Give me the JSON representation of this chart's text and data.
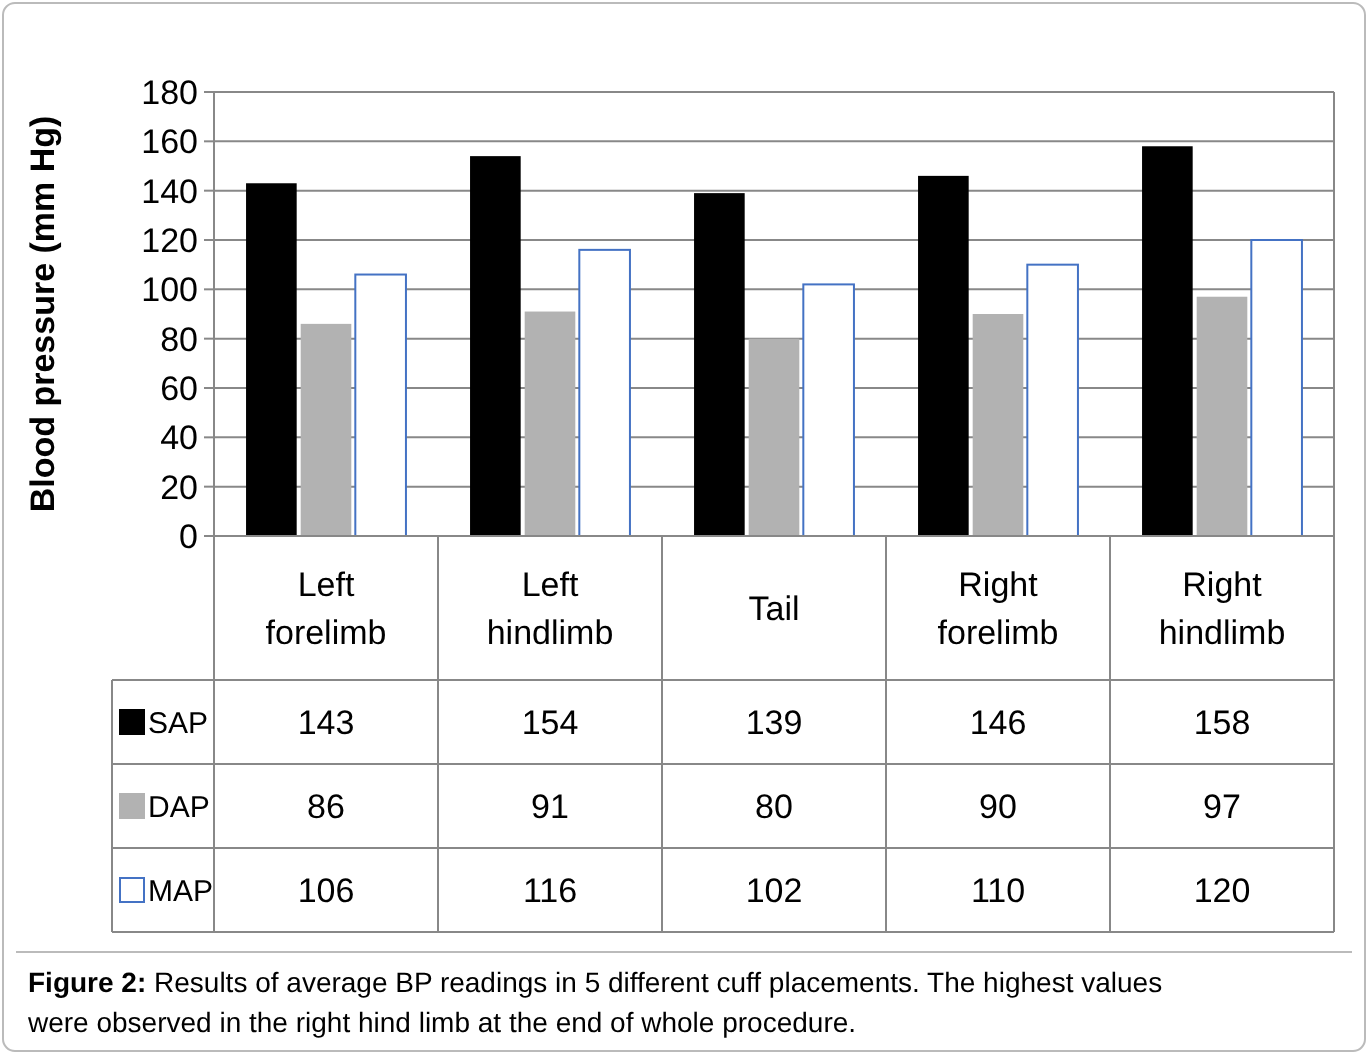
{
  "chart_data": {
    "type": "bar",
    "ylabel": "Blood pressure (mm Hg)",
    "categories": [
      "Left forelimb",
      "Left hindlimb",
      "Tail",
      "Right forelimb",
      "Right hindlimb"
    ],
    "series": [
      {
        "name": "SAP",
        "color": "#000000",
        "values": [
          143,
          154,
          139,
          146,
          158
        ]
      },
      {
        "name": "DAP",
        "color": "#b2b2b2",
        "values": [
          86,
          91,
          80,
          90,
          97
        ]
      },
      {
        "name": "MAP",
        "color": "#ffffff",
        "values": [
          106,
          116,
          102,
          110,
          120
        ]
      }
    ],
    "ylim": [
      0,
      180
    ],
    "yticks": [
      0,
      20,
      40,
      60,
      80,
      100,
      120,
      140,
      160,
      180
    ],
    "grid": "y",
    "data_labels": true,
    "legend": "bottom left",
    "annotations": [
      "Figure 2: Results of average BP readings in 5 different cuff placements. The highest values were observed in the right hind limb at the end of whole procedure."
    ]
  }
}
